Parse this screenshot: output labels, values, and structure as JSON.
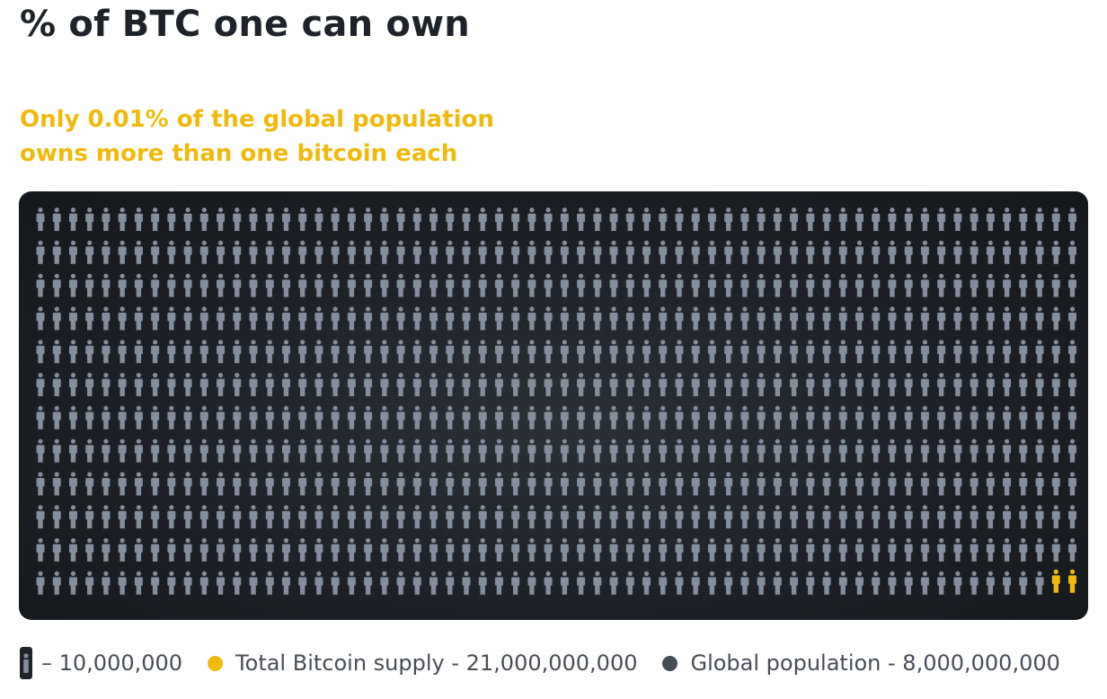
{
  "page": {
    "title": "% of BTC one can own",
    "subtitle_line1": "Only 0.01% of the global population",
    "subtitle_line2": "owns more than one bitcoin each"
  },
  "colors": {
    "accent": "#f0b90b",
    "person": "#848e9c",
    "population_dot": "#474d57",
    "panel": "#1e2329"
  },
  "legend": {
    "icon_label": "– 10,000,000",
    "supply_label": "Total Bitcoin supply - 21,000,000,000",
    "population_label": "Global population - 8,000,000,000"
  },
  "chart_data": {
    "type": "pictogram",
    "unit_per_icon": 10000000,
    "rows": 12,
    "columns": 64,
    "highlighted_icons": 2,
    "highlighted_position": "bottom-right",
    "series": [
      {
        "name": "Total Bitcoin supply",
        "value": 21000000000,
        "color": "#f0b90b"
      },
      {
        "name": "Global population",
        "value": 8000000000,
        "color": "#474d57"
      }
    ]
  }
}
